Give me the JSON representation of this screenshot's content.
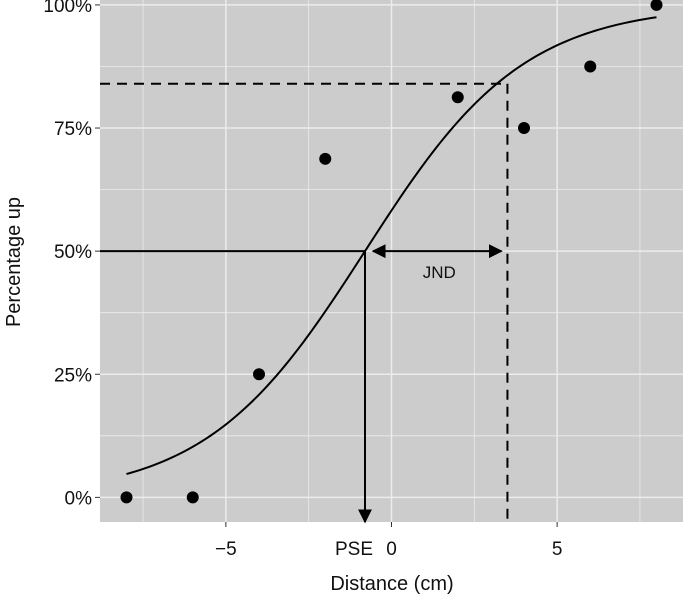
{
  "chart_data": {
    "type": "scatter",
    "xlabel": "Distance (cm)",
    "ylabel": "Percentage up",
    "xlim": [
      -8.8,
      8.8
    ],
    "ylim": [
      -5,
      101
    ],
    "x_ticks": [
      -5,
      0,
      5
    ],
    "x_tick_labels": [
      "−5",
      "0",
      "5"
    ],
    "y_ticks": [
      0,
      25,
      50,
      75,
      100
    ],
    "y_tick_labels": [
      "0%",
      "25%",
      "50%",
      "75%",
      "100%"
    ],
    "grid": true,
    "background": "#cccccc",
    "grid_color": "#ececec",
    "points": {
      "x": [
        -8,
        -6,
        -4,
        -2,
        2,
        4,
        6,
        8
      ],
      "y": [
        0,
        0,
        25,
        68.75,
        81.25,
        75,
        87.5,
        100
      ]
    },
    "fit_curve": {
      "type": "logistic",
      "pse": -0.8,
      "scale": 2.4,
      "x_range": [
        -8,
        8
      ]
    },
    "pse": {
      "x": -0.8,
      "label": "PSE"
    },
    "jnd": {
      "x": 3.5,
      "y": 84,
      "label": "JND"
    }
  }
}
